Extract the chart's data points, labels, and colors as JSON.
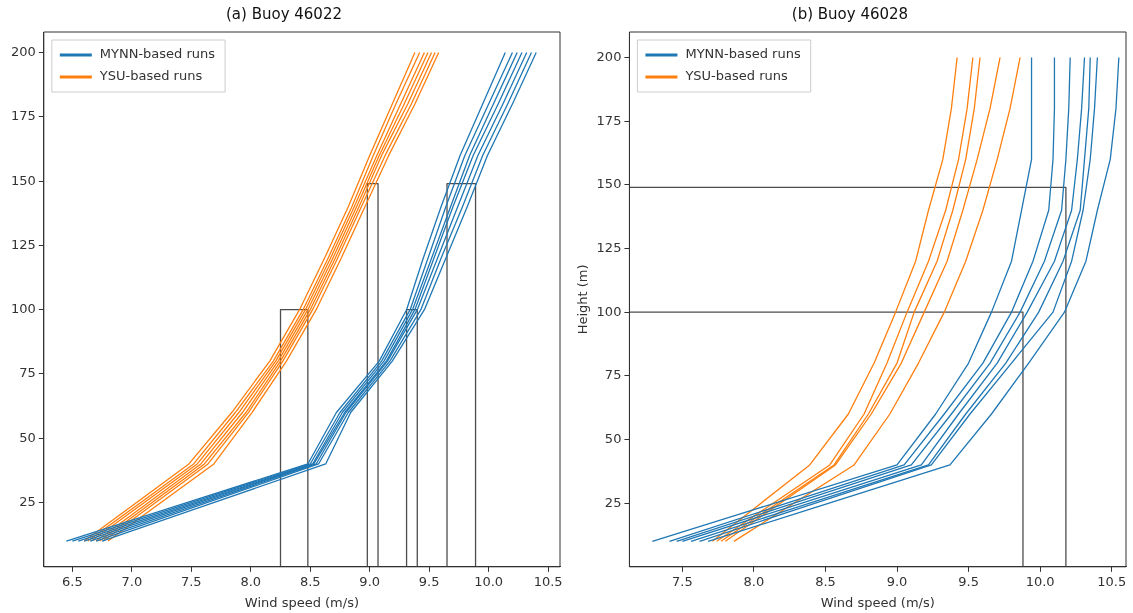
{
  "chart_data": [
    {
      "type": "line",
      "title": "(a) Buoy 46022",
      "xlabel": "Wind speed (m/s)",
      "legend": "top left",
      "marker": "none",
      "xlim": [
        6.26,
        10.6
      ],
      "ylim": [
        0,
        208
      ],
      "xticks": [
        {
          "value": 6.5,
          "label": "6.5"
        },
        {
          "value": 7,
          "label": "7.0"
        },
        {
          "value": 7.5,
          "label": "7.5"
        },
        {
          "value": 8,
          "label": "8.0"
        },
        {
          "value": 8.5,
          "label": "8.5"
        },
        {
          "value": 9,
          "label": "9.0"
        },
        {
          "value": 9.5,
          "label": "9.5"
        },
        {
          "value": 10,
          "label": "10.0"
        },
        {
          "value": 10.5,
          "label": "10.5"
        }
      ],
      "yticks": [
        25,
        50,
        75,
        100,
        125,
        150,
        175,
        200
      ],
      "series": [
        {
          "name": "MYNN-based runs",
          "color": "#1f77b4",
          "x": [
            6.45,
            8.48,
            8.72,
            9.08,
            9.31,
            9.45,
            9.6,
            9.76,
            9.95,
            10.14
          ],
          "values": [
            10,
            40,
            60,
            80,
            100,
            120,
            140,
            160,
            180,
            200
          ]
        },
        {
          "color": "#1f77b4",
          "x": [
            6.5,
            8.5,
            8.75,
            9.1,
            9.34,
            9.49,
            9.64,
            9.8,
            10.0,
            10.2
          ],
          "values": [
            10,
            40,
            60,
            80,
            100,
            120,
            140,
            160,
            180,
            200
          ]
        },
        {
          "color": "#1f77b4",
          "x": [
            6.55,
            8.52,
            8.77,
            9.12,
            9.36,
            9.52,
            9.68,
            9.84,
            10.04,
            10.24
          ],
          "values": [
            10,
            40,
            60,
            80,
            100,
            120,
            140,
            160,
            180,
            200
          ]
        },
        {
          "color": "#1f77b4",
          "x": [
            6.6,
            8.53,
            8.79,
            9.14,
            9.38,
            9.54,
            9.7,
            9.87,
            10.08,
            10.28
          ],
          "values": [
            10,
            40,
            60,
            80,
            100,
            120,
            140,
            160,
            180,
            200
          ]
        },
        {
          "color": "#1f77b4",
          "x": [
            6.65,
            8.55,
            8.8,
            9.15,
            9.4,
            9.57,
            9.74,
            9.91,
            10.12,
            10.32
          ],
          "values": [
            10,
            40,
            60,
            80,
            100,
            120,
            140,
            160,
            180,
            200
          ]
        },
        {
          "color": "#1f77b4",
          "x": [
            6.7,
            8.57,
            8.82,
            9.17,
            9.43,
            9.6,
            9.78,
            9.95,
            10.16,
            10.36
          ],
          "values": [
            10,
            40,
            60,
            80,
            100,
            120,
            140,
            160,
            180,
            200
          ]
        },
        {
          "color": "#1f77b4",
          "x": [
            6.75,
            8.63,
            8.84,
            9.19,
            9.46,
            9.64,
            9.82,
            9.99,
            10.2,
            10.4
          ],
          "values": [
            10,
            40,
            60,
            80,
            100,
            120,
            140,
            160,
            180,
            200
          ]
        },
        {
          "name": "YSU-based runs",
          "color": "#ff7f0e",
          "x": [
            6.6,
            7.48,
            7.84,
            8.16,
            8.41,
            8.62,
            8.82,
            9.0,
            9.19,
            9.38
          ],
          "values": [
            10,
            40,
            60,
            80,
            100,
            120,
            140,
            160,
            180,
            200
          ]
        },
        {
          "color": "#ff7f0e",
          "x": [
            6.63,
            7.52,
            7.87,
            8.19,
            8.44,
            8.65,
            8.85,
            9.03,
            9.22,
            9.42
          ],
          "values": [
            10,
            40,
            60,
            80,
            100,
            120,
            140,
            160,
            180,
            200
          ]
        },
        {
          "color": "#ff7f0e",
          "x": [
            6.66,
            7.55,
            7.9,
            8.21,
            8.46,
            8.67,
            8.87,
            9.06,
            9.26,
            9.46
          ],
          "values": [
            10,
            40,
            60,
            80,
            100,
            120,
            140,
            160,
            180,
            200
          ]
        },
        {
          "color": "#ff7f0e",
          "x": [
            6.7,
            7.58,
            7.93,
            8.23,
            8.48,
            8.69,
            8.89,
            9.08,
            9.29,
            9.49
          ],
          "values": [
            10,
            40,
            60,
            80,
            100,
            120,
            140,
            160,
            180,
            200
          ]
        },
        {
          "color": "#ff7f0e",
          "x": [
            6.73,
            7.61,
            7.96,
            8.25,
            8.5,
            8.71,
            8.91,
            9.1,
            9.32,
            9.52
          ],
          "values": [
            10,
            40,
            60,
            80,
            100,
            120,
            140,
            160,
            180,
            200
          ]
        },
        {
          "color": "#ff7f0e",
          "x": [
            6.76,
            7.64,
            7.98,
            8.27,
            8.52,
            8.73,
            8.93,
            9.13,
            9.35,
            9.55
          ],
          "values": [
            10,
            40,
            60,
            80,
            100,
            120,
            140,
            160,
            180,
            200
          ]
        },
        {
          "color": "#ff7f0e",
          "x": [
            6.8,
            7.69,
            8.01,
            8.3,
            8.55,
            8.76,
            8.96,
            9.16,
            9.38,
            9.58
          ],
          "values": [
            10,
            40,
            60,
            80,
            100,
            120,
            140,
            160,
            180,
            200
          ]
        },
        {
          "color": "#4d4d4d",
          "x": [
            8.25,
            8.25,
            8.48,
            8.48
          ],
          "values": [
            0,
            100,
            100,
            0
          ]
        },
        {
          "color": "#4d4d4d",
          "x": [
            8.98,
            8.98,
            9.07,
            9.07
          ],
          "values": [
            0,
            149,
            149,
            0
          ]
        },
        {
          "color": "#4d4d4d",
          "x": [
            9.31,
            9.31,
            9.4,
            9.4
          ],
          "values": [
            0,
            100,
            100,
            0
          ]
        },
        {
          "color": "#4d4d4d",
          "x": [
            9.65,
            9.65,
            9.89,
            9.89
          ],
          "values": [
            0,
            149,
            149,
            0
          ]
        }
      ]
    },
    {
      "type": "line",
      "title": "(b) Buoy 46028",
      "xlabel": "Wind speed (m/s)",
      "ylabel": "Height (m)",
      "legend": "top left",
      "marker": "none",
      "xlim": [
        7.13,
        10.6
      ],
      "ylim": [
        0,
        210
      ],
      "xticks": [
        {
          "value": 7.5,
          "label": "7.5"
        },
        {
          "value": 8,
          "label": "8.0"
        },
        {
          "value": 8.5,
          "label": "8.5"
        },
        {
          "value": 9,
          "label": "9.0"
        },
        {
          "value": 9.5,
          "label": "9.5"
        },
        {
          "value": 10,
          "label": "10.0"
        },
        {
          "value": 10.5,
          "label": "10.5"
        }
      ],
      "yticks": [
        25,
        50,
        75,
        100,
        125,
        150,
        175,
        200
      ],
      "series": [
        {
          "name": "MYNN-based runs",
          "color": "#1f77b4",
          "x": [
            7.29,
            9.0,
            9.27,
            9.5,
            9.66,
            9.8,
            9.87,
            9.94,
            9.94
          ],
          "values": [
            10,
            40,
            60,
            80,
            100,
            120,
            140,
            160,
            200
          ]
        },
        {
          "color": "#1f77b4",
          "x": [
            7.41,
            9.05,
            9.33,
            9.6,
            9.8,
            9.95,
            10.06,
            10.09,
            10.1,
            10.1
          ],
          "values": [
            10,
            40,
            60,
            80,
            100,
            120,
            140,
            160,
            180,
            200
          ]
        },
        {
          "color": "#1f77b4",
          "x": [
            7.46,
            9.1,
            9.38,
            9.65,
            9.86,
            10.03,
            10.15,
            10.18,
            10.2,
            10.21
          ],
          "values": [
            10,
            40,
            60,
            80,
            100,
            120,
            140,
            160,
            180,
            200
          ]
        },
        {
          "color": "#1f77b4",
          "x": [
            7.5,
            9.17,
            9.43,
            9.7,
            9.91,
            10.1,
            10.22,
            10.26,
            10.29,
            10.31
          ],
          "values": [
            10,
            40,
            60,
            80,
            100,
            120,
            140,
            160,
            180,
            200
          ]
        },
        {
          "color": "#1f77b4",
          "x": [
            7.56,
            9.22,
            9.48,
            9.76,
            9.99,
            10.16,
            10.28,
            10.31,
            10.34,
            10.35
          ],
          "values": [
            10,
            40,
            60,
            80,
            100,
            120,
            140,
            160,
            180,
            200
          ]
        },
        {
          "color": "#1f77b4",
          "x": [
            7.62,
            9.24,
            9.51,
            9.8,
            10.09,
            10.22,
            10.3,
            10.35,
            10.38,
            10.4
          ],
          "values": [
            10,
            40,
            60,
            80,
            100,
            120,
            140,
            160,
            180,
            200
          ]
        },
        {
          "color": "#1f77b4",
          "x": [
            7.68,
            9.37,
            9.66,
            9.92,
            10.17,
            10.32,
            10.4,
            10.49,
            10.53,
            10.55
          ],
          "values": [
            10,
            40,
            60,
            80,
            100,
            120,
            140,
            160,
            180,
            200
          ]
        },
        {
          "name": "YSU-based runs",
          "color": "#ff7f0e",
          "x": [
            7.71,
            8.39,
            8.66,
            8.84,
            8.99,
            9.13,
            9.22,
            9.32,
            9.38,
            9.42
          ],
          "values": [
            10,
            40,
            60,
            80,
            100,
            120,
            140,
            160,
            180,
            200
          ]
        },
        {
          "color": "#ff7f0e",
          "x": [
            7.74,
            8.53,
            8.77,
            8.93,
            9.07,
            9.22,
            9.34,
            9.43,
            9.49,
            9.53
          ],
          "values": [
            10,
            40,
            60,
            80,
            100,
            120,
            140,
            160,
            180,
            200
          ]
        },
        {
          "color": "#ff7f0e",
          "x": [
            7.77,
            8.56,
            8.8,
            9.0,
            9.12,
            9.28,
            9.39,
            9.48,
            9.54,
            9.58
          ],
          "values": [
            10,
            40,
            60,
            80,
            100,
            120,
            140,
            160,
            180,
            200
          ]
        },
        {
          "color": "#ff7f0e",
          "x": [
            7.8,
            8.57,
            8.82,
            9.03,
            9.19,
            9.35,
            9.46,
            9.56,
            9.65,
            9.72
          ],
          "values": [
            10,
            40,
            60,
            80,
            100,
            120,
            140,
            160,
            180,
            200
          ]
        },
        {
          "color": "#ff7f0e",
          "x": [
            7.86,
            8.7,
            8.95,
            9.15,
            9.33,
            9.48,
            9.6,
            9.7,
            9.79,
            9.86
          ],
          "values": [
            10,
            40,
            60,
            80,
            100,
            120,
            140,
            160,
            180,
            200
          ]
        },
        {
          "color": "#4d4d4d",
          "x": [
            7.13,
            10.18,
            10.18
          ],
          "values": [
            149,
            149,
            0
          ]
        },
        {
          "color": "#4d4d4d",
          "x": [
            7.13,
            9.88,
            9.88
          ],
          "values": [
            100,
            100,
            0
          ]
        }
      ]
    }
  ]
}
